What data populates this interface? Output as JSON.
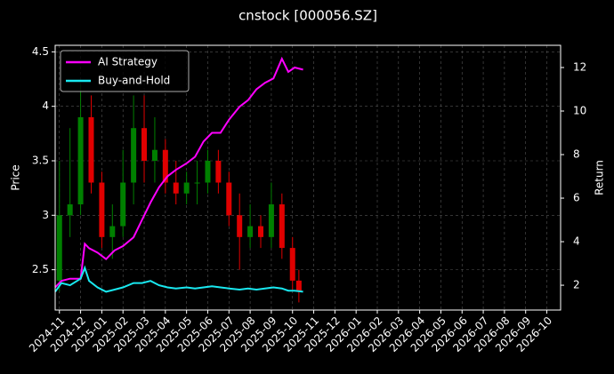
{
  "chart_data": {
    "type": "candlestick",
    "title": "cnstock [000056.SZ]",
    "y_label": "Price",
    "y2_label": "Return",
    "candles": {
      "x": [
        0,
        0.5,
        1,
        1.5,
        2,
        2.5,
        3,
        3.5,
        4,
        4.5,
        5,
        5.5,
        6,
        6.5,
        7,
        7.5,
        8,
        8.5,
        9,
        9.5,
        10,
        10.5,
        11,
        11.3
      ],
      "open": [
        2.4,
        3.0,
        3.1,
        3.9,
        3.3,
        2.8,
        2.9,
        3.3,
        3.8,
        3.5,
        3.6,
        3.3,
        3.2,
        3.3,
        3.3,
        3.5,
        3.3,
        3.0,
        2.8,
        2.9,
        2.8,
        3.1,
        2.7,
        2.4
      ],
      "high": [
        3.5,
        3.8,
        4.2,
        4.1,
        3.4,
        3.1,
        3.6,
        4.1,
        4.1,
        3.9,
        3.7,
        3.5,
        3.4,
        3.5,
        3.6,
        3.6,
        3.4,
        3.2,
        3.1,
        3.0,
        3.3,
        3.2,
        2.8,
        2.5
      ],
      "low": [
        2.3,
        2.8,
        3.0,
        3.2,
        2.7,
        2.6,
        2.8,
        3.1,
        3.3,
        3.3,
        3.2,
        3.1,
        3.1,
        3.1,
        3.2,
        3.2,
        2.9,
        2.5,
        2.7,
        2.7,
        2.7,
        2.6,
        2.3,
        2.2
      ],
      "close": [
        3.0,
        3.1,
        3.9,
        3.3,
        2.8,
        2.9,
        3.3,
        3.8,
        3.5,
        3.6,
        3.3,
        3.2,
        3.3,
        3.3,
        3.5,
        3.3,
        3.0,
        2.8,
        2.9,
        2.8,
        3.1,
        2.7,
        2.4,
        2.3
      ],
      "up_color": "#008000",
      "down_color": "#e00000"
    },
    "x": [
      -0.2,
      0.1,
      0.5,
      1.0,
      1.2,
      1.4,
      1.8,
      2.2,
      2.6,
      3.0,
      3.5,
      3.9,
      4.3,
      4.7,
      5.1,
      5.5,
      6.0,
      6.4,
      6.8,
      7.2,
      7.6,
      8.0,
      8.5,
      8.9,
      9.3,
      9.7,
      10.1,
      10.5,
      10.8,
      11.1,
      11.5
    ],
    "series": [
      {
        "name": "AI Strategy",
        "color": "#ff00ff",
        "axis": "y2",
        "values": [
          1.9,
          2.2,
          2.3,
          2.3,
          3.9,
          3.7,
          3.5,
          3.2,
          3.6,
          3.8,
          4.2,
          5.0,
          5.8,
          6.5,
          7.0,
          7.3,
          7.6,
          7.9,
          8.6,
          9.0,
          9.0,
          9.6,
          10.2,
          10.5,
          11.0,
          11.3,
          11.5,
          12.4,
          11.8,
          12.0,
          11.9
        ]
      },
      {
        "name": "Buy-and-Hold",
        "color": "#19e8f0",
        "axis": "y2",
        "values": [
          1.7,
          2.1,
          2.0,
          2.3,
          2.8,
          2.2,
          1.9,
          1.7,
          1.8,
          1.9,
          2.1,
          2.1,
          2.2,
          2.0,
          1.9,
          1.85,
          1.9,
          1.85,
          1.9,
          1.95,
          1.9,
          1.85,
          1.8,
          1.85,
          1.8,
          1.85,
          1.9,
          1.85,
          1.75,
          1.75,
          1.7
        ]
      }
    ],
    "xlim": [
      -0.2,
      23.65
    ],
    "xticks": [
      {
        "value": 0,
        "label": "2024-11"
      },
      {
        "value": 1,
        "label": "2024-12"
      },
      {
        "value": 2,
        "label": "2025-01"
      },
      {
        "value": 3,
        "label": "2025-02"
      },
      {
        "value": 4,
        "label": "2025-03"
      },
      {
        "value": 5,
        "label": "2025-04"
      },
      {
        "value": 6,
        "label": "2025-05"
      },
      {
        "value": 7,
        "label": "2025-06"
      },
      {
        "value": 8,
        "label": "2025-07"
      },
      {
        "value": 9,
        "label": "2025-08"
      },
      {
        "value": 10,
        "label": "2025-09"
      },
      {
        "value": 11,
        "label": "2025-10"
      },
      {
        "value": 12,
        "label": "2025-11"
      },
      {
        "value": 13,
        "label": "2025-12"
      },
      {
        "value": 14,
        "label": "2026-01"
      },
      {
        "value": 15,
        "label": "2026-02"
      },
      {
        "value": 16,
        "label": "2026-03"
      },
      {
        "value": 17,
        "label": "2026-04"
      },
      {
        "value": 18,
        "label": "2026-05"
      },
      {
        "value": 19,
        "label": "2026-06"
      },
      {
        "value": 20,
        "label": "2026-07"
      },
      {
        "value": 21,
        "label": "2026-08"
      },
      {
        "value": 22,
        "label": "2026-09"
      },
      {
        "value": 23,
        "label": "2026-10"
      }
    ],
    "ylim": [
      2.13,
      4.56
    ],
    "yticks": [
      2.5,
      3.0,
      3.5,
      4.0,
      4.5
    ],
    "y2lim": [
      0.86,
      13.02
    ],
    "y2ticks": [
      2,
      4,
      6,
      8,
      10,
      12
    ],
    "grid": true,
    "legend": "upper-left"
  }
}
